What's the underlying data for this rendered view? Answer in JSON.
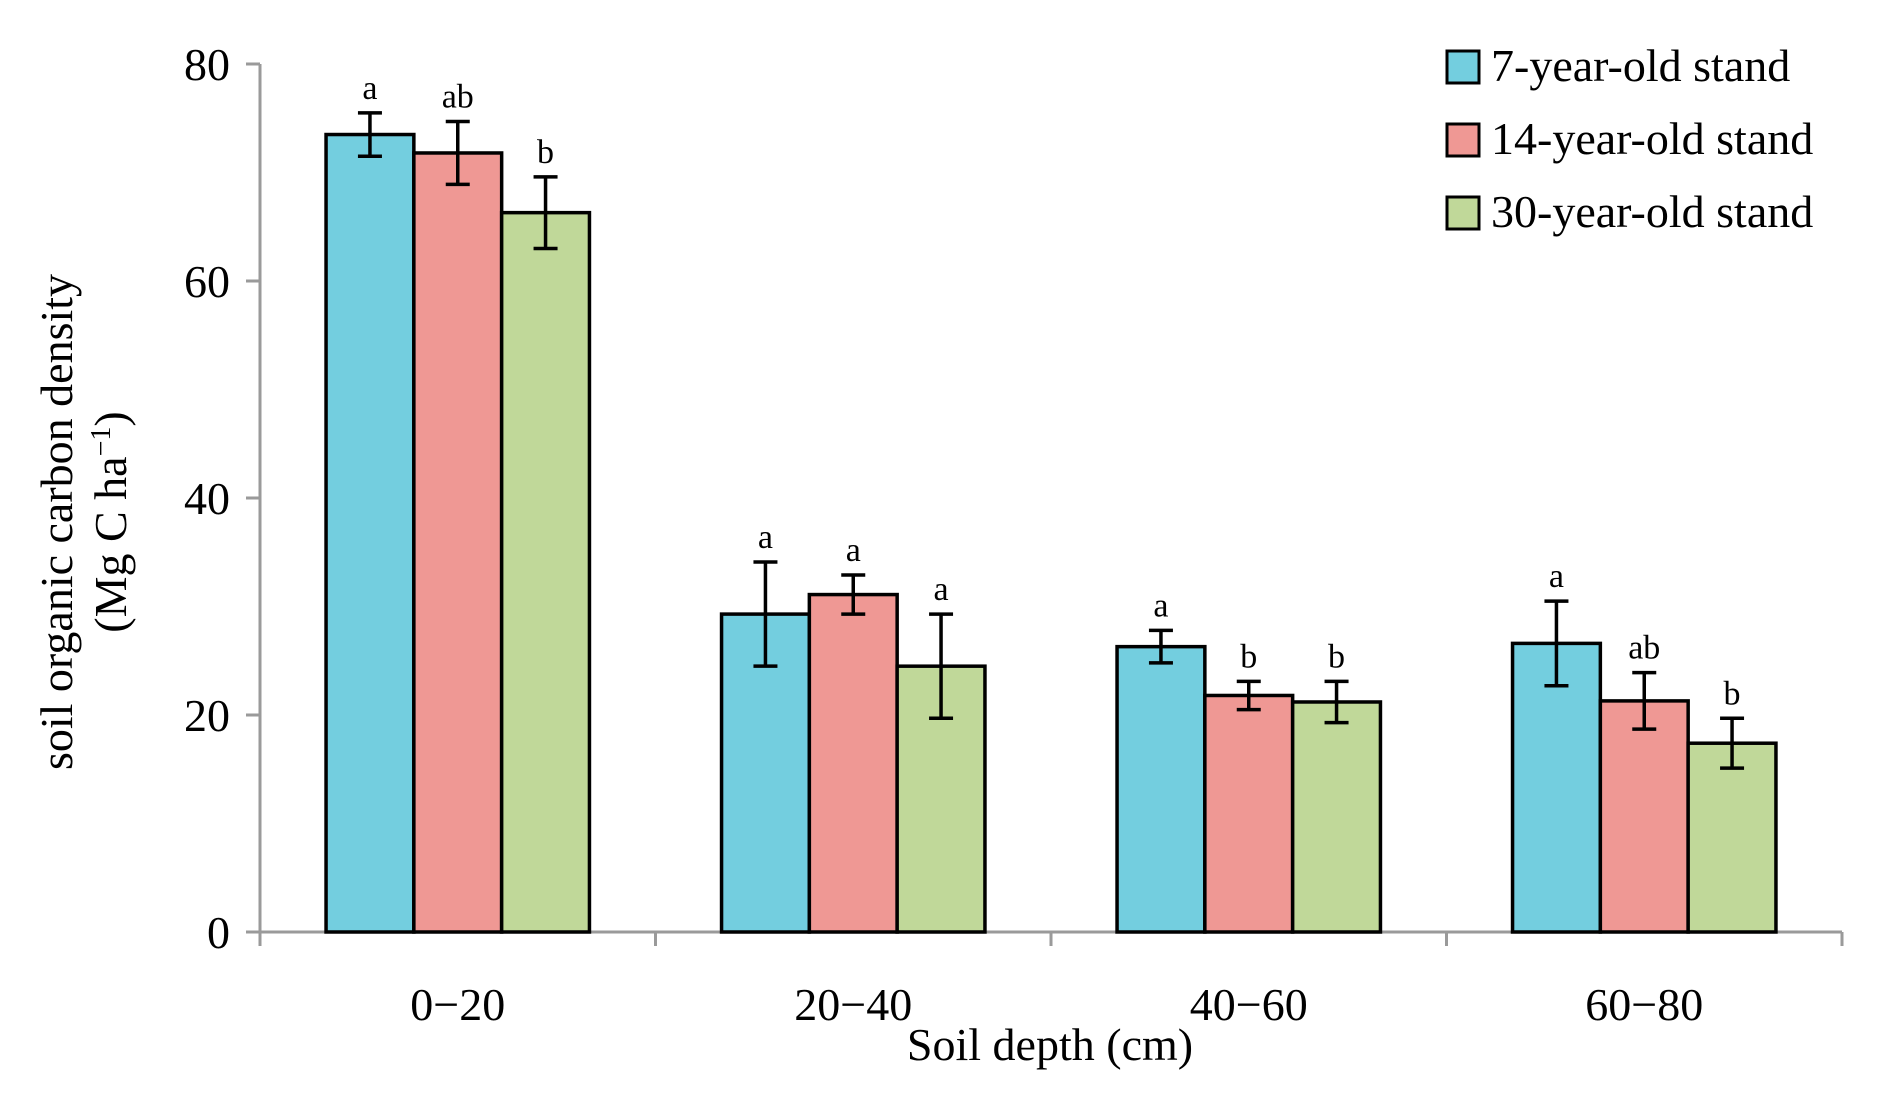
{
  "chart_data": {
    "type": "bar",
    "title": "",
    "xlabel": "Soil depth (cm)",
    "ylabel_line1": "soil organic carbon density",
    "ylabel_line2_prefix": "(Mg C ha",
    "ylabel_line2_sup": "−1",
    "ylabel_line2_suffix": ")",
    "ylim": [
      0,
      80
    ],
    "yticks": [
      0,
      20,
      40,
      60,
      80
    ],
    "categories": [
      "0−20",
      "20−40",
      "40−60",
      "60−80"
    ],
    "legend_position": "top-right",
    "series": [
      {
        "name": "7-year-old stand",
        "color": "#73CEDF",
        "values": [
          73.5,
          29.3,
          26.3,
          26.6
        ],
        "errors": [
          2.0,
          4.8,
          1.5,
          3.9
        ],
        "labels": [
          "a",
          "a",
          "a",
          "a"
        ]
      },
      {
        "name": "14-year-old stand",
        "color": "#EF9894",
        "values": [
          71.8,
          31.1,
          21.8,
          21.3
        ],
        "errors": [
          2.9,
          1.8,
          1.3,
          2.6
        ],
        "labels": [
          "ab",
          "a",
          "b",
          "ab"
        ]
      },
      {
        "name": "30-year-old stand",
        "color": "#C0D899",
        "values": [
          66.3,
          24.5,
          21.2,
          17.4
        ],
        "errors": [
          3.3,
          4.8,
          1.9,
          2.3
        ],
        "labels": [
          "b",
          "a",
          "b",
          "b"
        ]
      }
    ]
  }
}
